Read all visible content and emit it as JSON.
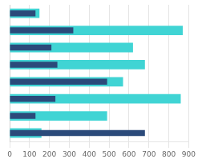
{
  "chart_data": {
    "type": "bar",
    "orientation": "horizontal",
    "categories": [
      null,
      null,
      null,
      null,
      null,
      null,
      null,
      null
    ],
    "series": [
      {
        "color": "#40d4d4",
        "values": [
          150,
          870,
          620,
          680,
          570,
          860,
          490,
          160
        ]
      },
      {
        "color": "#2b4a7a",
        "values": [
          130,
          320,
          210,
          240,
          490,
          230,
          130,
          680
        ]
      }
    ],
    "xlim": [
      0,
      900
    ],
    "xticks": [
      0,
      100,
      200,
      300,
      400,
      500,
      600,
      700,
      800,
      900
    ],
    "grid": true,
    "tick_labels": "x"
  }
}
